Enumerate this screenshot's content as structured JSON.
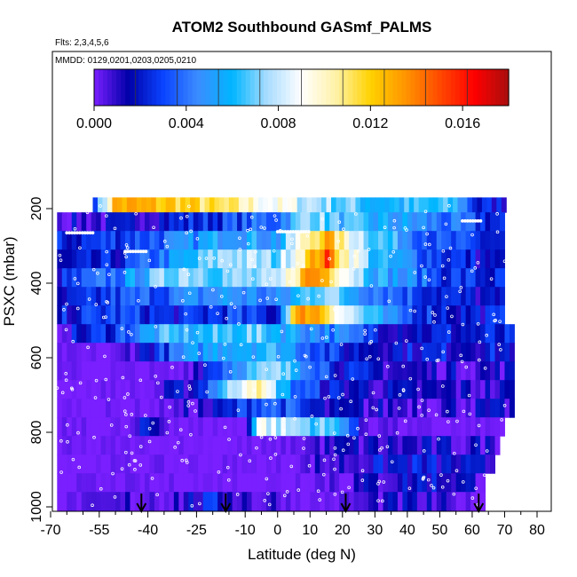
{
  "chart_data": {
    "type": "heatmap",
    "title": "ATOM2 Southbound GASmf_PALMS",
    "flights_label": "Flts: 2,3,4,5,6",
    "dates_label": "MMDD: 0129,0201,0203,0205,0210",
    "xlabel": "Latitude (deg N)",
    "ylabel": "PSXC (mbar)",
    "xlim": [
      -70,
      80
    ],
    "ylim": [
      1000,
      0
    ],
    "x_ticks": [
      "-70",
      "-55",
      "-40",
      "-25",
      "-10",
      "0",
      "10",
      "20",
      "30",
      "40",
      "50",
      "60",
      "70",
      "80"
    ],
    "x_tick_values": [
      -70,
      -55,
      -40,
      -25,
      -10,
      0,
      10,
      20,
      30,
      40,
      50,
      60,
      70,
      80
    ],
    "y_ticks": [
      "200",
      "400",
      "600",
      "800",
      "1000"
    ],
    "y_tick_values": [
      200,
      400,
      600,
      800,
      1000
    ],
    "colorbar": {
      "min": 0.0,
      "max": 0.018,
      "tick_labels": [
        "0.000",
        "0.004",
        "0.008",
        "0.012",
        "0.016"
      ],
      "tick_values": [
        0.0,
        0.004,
        0.008,
        0.012,
        0.016
      ],
      "colors": [
        "#7a1fff",
        "#0000a8",
        "#0b44ff",
        "#3c8cff",
        "#00b6ff",
        "#a8dcff",
        "#ffffff",
        "#fff2a8",
        "#ffd200",
        "#ff9600",
        "#ff4a00",
        "#ff0000",
        "#a80e0e"
      ]
    },
    "layers": [
      {
        "p_top": 170,
        "p_bot": 210,
        "lat_min": -57,
        "lat_max": 70,
        "profile": [
          [
            -57,
            0.003
          ],
          [
            -50,
            0.013
          ],
          [
            -30,
            0.012
          ],
          [
            -10,
            0.01
          ],
          [
            10,
            0.008
          ],
          [
            30,
            0.006
          ],
          [
            55,
            0.006
          ],
          [
            62,
            0.002
          ],
          [
            70,
            0.002
          ]
        ]
      },
      {
        "p_top": 210,
        "p_bot": 260,
        "lat_min": -68,
        "lat_max": 70,
        "profile": [
          [
            -68,
            0.001
          ],
          [
            -50,
            0.001
          ],
          [
            -35,
            0.002
          ],
          [
            -15,
            0.003
          ],
          [
            0,
            0.004
          ],
          [
            10,
            0.008
          ],
          [
            20,
            0.006
          ],
          [
            40,
            0.005
          ],
          [
            60,
            0.003
          ],
          [
            70,
            0.002
          ]
        ]
      },
      {
        "p_top": 260,
        "p_bot": 310,
        "lat_min": -68,
        "lat_max": 70,
        "profile": [
          [
            -68,
            0.002
          ],
          [
            -50,
            0.003
          ],
          [
            -30,
            0.004
          ],
          [
            -15,
            0.006
          ],
          [
            0,
            0.005
          ],
          [
            10,
            0.011
          ],
          [
            15,
            0.013
          ],
          [
            20,
            0.01
          ],
          [
            30,
            0.007
          ],
          [
            50,
            0.003
          ],
          [
            70,
            0.002
          ]
        ]
      },
      {
        "p_top": 310,
        "p_bot": 360,
        "lat_min": -68,
        "lat_max": 70,
        "profile": [
          [
            -68,
            0.001
          ],
          [
            -50,
            0.002
          ],
          [
            -30,
            0.005
          ],
          [
            -15,
            0.008
          ],
          [
            0,
            0.007
          ],
          [
            10,
            0.012
          ],
          [
            15,
            0.015
          ],
          [
            20,
            0.011
          ],
          [
            30,
            0.006
          ],
          [
            50,
            0.003
          ],
          [
            70,
            0.001
          ]
        ]
      },
      {
        "p_top": 360,
        "p_bot": 410,
        "lat_min": -68,
        "lat_max": 70,
        "profile": [
          [
            -68,
            0.002
          ],
          [
            -50,
            0.004
          ],
          [
            -30,
            0.008
          ],
          [
            -15,
            0.007
          ],
          [
            0,
            0.007
          ],
          [
            10,
            0.014
          ],
          [
            15,
            0.013
          ],
          [
            20,
            0.01
          ],
          [
            30,
            0.006
          ],
          [
            50,
            0.003
          ],
          [
            70,
            0.002
          ]
        ]
      },
      {
        "p_top": 410,
        "p_bot": 460,
        "lat_min": -68,
        "lat_max": 70,
        "profile": [
          [
            -68,
            0.001
          ],
          [
            -50,
            0.003
          ],
          [
            -30,
            0.004
          ],
          [
            -15,
            0.005
          ],
          [
            0,
            0.004
          ],
          [
            10,
            0.007
          ],
          [
            15,
            0.008
          ],
          [
            20,
            0.006
          ],
          [
            35,
            0.004
          ],
          [
            55,
            0.002
          ],
          [
            70,
            0.001
          ]
        ]
      },
      {
        "p_top": 460,
        "p_bot": 510,
        "lat_min": -68,
        "lat_max": 70,
        "profile": [
          [
            -68,
            0.002
          ],
          [
            -50,
            0.003
          ],
          [
            -30,
            0.002
          ],
          [
            -15,
            0.003
          ],
          [
            0,
            0.002
          ],
          [
            5,
            0.012
          ],
          [
            10,
            0.014
          ],
          [
            15,
            0.012
          ],
          [
            20,
            0.009
          ],
          [
            35,
            0.004
          ],
          [
            55,
            0.002
          ],
          [
            70,
            0.002
          ]
        ]
      },
      {
        "p_top": 510,
        "p_bot": 560,
        "lat_min": -68,
        "lat_max": 72,
        "profile": [
          [
            -68,
            0.001
          ],
          [
            -50,
            0.003
          ],
          [
            -35,
            0.006
          ],
          [
            -20,
            0.006
          ],
          [
            -10,
            0.007
          ],
          [
            0,
            0.006
          ],
          [
            10,
            0.005
          ],
          [
            20,
            0.004
          ],
          [
            35,
            0.002
          ],
          [
            60,
            0.002
          ],
          [
            72,
            0.002
          ]
        ]
      },
      {
        "p_top": 560,
        "p_bot": 610,
        "lat_min": -68,
        "lat_max": 72,
        "profile": [
          [
            -68,
            0.0
          ],
          [
            -50,
            0.0
          ],
          [
            -30,
            0.004
          ],
          [
            -15,
            0.006
          ],
          [
            0,
            0.006
          ],
          [
            10,
            0.004
          ],
          [
            20,
            0.002
          ],
          [
            35,
            0.002
          ],
          [
            60,
            0.002
          ],
          [
            72,
            0.002
          ]
        ]
      },
      {
        "p_top": 610,
        "p_bot": 660,
        "lat_min": -68,
        "lat_max": 72,
        "profile": [
          [
            -68,
            0.0
          ],
          [
            -50,
            0.0
          ],
          [
            -30,
            0.0
          ],
          [
            -10,
            0.006
          ],
          [
            0,
            0.007
          ],
          [
            10,
            0.005
          ],
          [
            20,
            0.002
          ],
          [
            40,
            0.001
          ],
          [
            72,
            0.001
          ]
        ]
      },
      {
        "p_top": 660,
        "p_bot": 710,
        "lat_min": -68,
        "lat_max": 72,
        "profile": [
          [
            -68,
            0.0
          ],
          [
            -40,
            0.0
          ],
          [
            -25,
            0.002
          ],
          [
            -15,
            0.007
          ],
          [
            -8,
            0.011
          ],
          [
            -2,
            0.008
          ],
          [
            5,
            0.004
          ],
          [
            15,
            0.002
          ],
          [
            40,
            0.001
          ],
          [
            72,
            0.001
          ]
        ]
      },
      {
        "p_top": 710,
        "p_bot": 760,
        "lat_min": -68,
        "lat_max": 73,
        "profile": [
          [
            -68,
            0.0
          ],
          [
            -40,
            0.0
          ],
          [
            -20,
            0.001
          ],
          [
            -5,
            0.004
          ],
          [
            5,
            0.003
          ],
          [
            15,
            0.001
          ],
          [
            40,
            0.001
          ],
          [
            73,
            0.001
          ]
        ]
      },
      {
        "p_top": 760,
        "p_bot": 810,
        "lat_min": -68,
        "lat_max": 70,
        "profile": [
          [
            -68,
            0.0
          ],
          [
            -45,
            0.0
          ],
          [
            -40,
            0.002
          ],
          [
            -30,
            0.0
          ],
          [
            -10,
            0.0
          ],
          [
            -6,
            0.009
          ],
          [
            0,
            0.008
          ],
          [
            10,
            0.007
          ],
          [
            20,
            0.006
          ],
          [
            25,
            0.001
          ],
          [
            40,
            0.0
          ],
          [
            70,
            0.0
          ]
        ]
      },
      {
        "p_top": 810,
        "p_bot": 860,
        "lat_min": -68,
        "lat_max": 68,
        "profile": [
          [
            -68,
            0.0
          ],
          [
            -30,
            0.0
          ],
          [
            0,
            0.0
          ],
          [
            20,
            0.001
          ],
          [
            40,
            0.001
          ],
          [
            68,
            0.001
          ]
        ]
      },
      {
        "p_top": 860,
        "p_bot": 910,
        "lat_min": -68,
        "lat_max": 66,
        "profile": [
          [
            -68,
            0.0
          ],
          [
            0,
            0.0
          ],
          [
            20,
            0.001
          ],
          [
            40,
            0.002
          ],
          [
            66,
            0.001
          ]
        ]
      },
      {
        "p_top": 910,
        "p_bot": 960,
        "lat_min": -68,
        "lat_max": 64,
        "profile": [
          [
            -68,
            0.0
          ],
          [
            0,
            0.0
          ],
          [
            30,
            0.001
          ],
          [
            45,
            0.002
          ],
          [
            64,
            0.001
          ]
        ]
      },
      {
        "p_top": 960,
        "p_bot": 1010,
        "lat_min": -68,
        "lat_max": 63,
        "profile": [
          [
            -68,
            0.0
          ],
          [
            -30,
            0.001
          ],
          [
            -20,
            0.002
          ],
          [
            -10,
            0.001
          ],
          [
            10,
            0.0
          ],
          [
            40,
            0.001
          ],
          [
            63,
            0.0
          ]
        ]
      }
    ],
    "arrows_lat": [
      -42,
      -16,
      21,
      62
    ]
  }
}
